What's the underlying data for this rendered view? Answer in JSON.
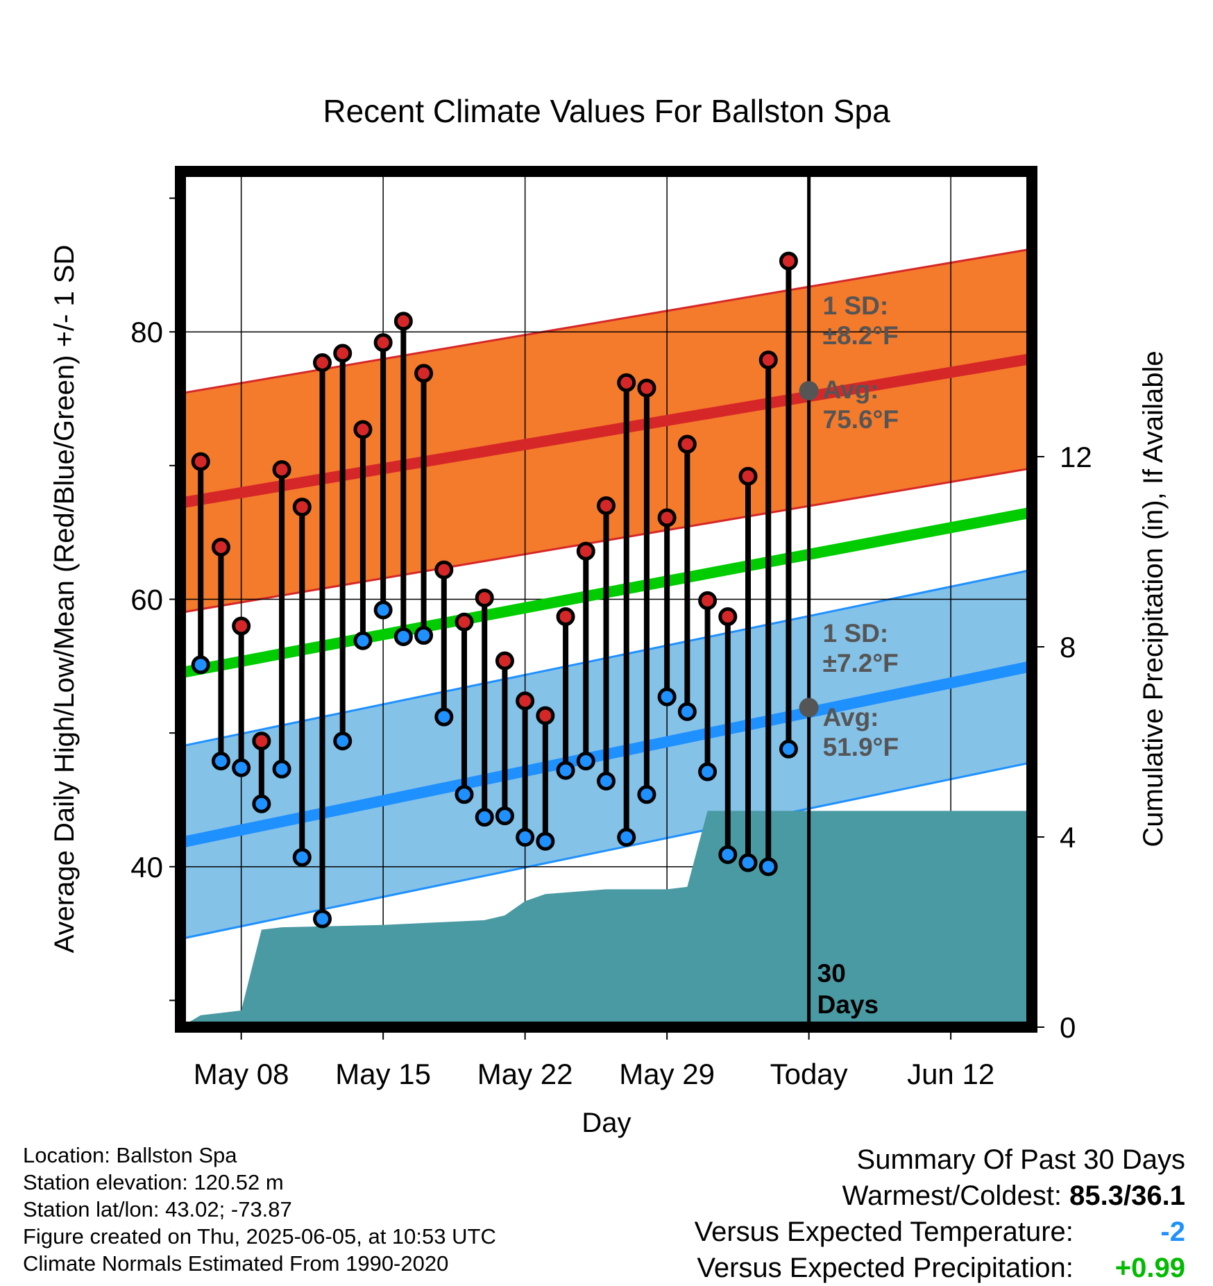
{
  "chart_data": {
    "type": "line",
    "title": "Recent Climate Values For Ballston Spa",
    "xlabel": "Day",
    "ylabel": "Average Daily High/Low/Mean (Red/Blue/Green) +/- 1 SD",
    "y2label": "Cumulative Precipitation (in), If Available",
    "ylim": [
      28,
      92
    ],
    "y2lim": [
      0,
      18
    ],
    "xlim": [
      "2025-05-05",
      "2025-06-16"
    ],
    "x_ticks": [
      "May 08",
      "May 15",
      "May 22",
      "May 29",
      "Today",
      "Jun 12"
    ],
    "y_ticks": [
      40,
      60,
      80
    ],
    "y2_ticks": [
      0,
      4,
      8,
      12
    ],
    "grid": true,
    "today": "2025-06-05",
    "days_label": [
      "30",
      "Days"
    ],
    "dates": [
      "2025-05-06",
      "2025-05-07",
      "2025-05-08",
      "2025-05-09",
      "2025-05-10",
      "2025-05-11",
      "2025-05-12",
      "2025-05-13",
      "2025-05-14",
      "2025-05-15",
      "2025-05-16",
      "2025-05-17",
      "2025-05-18",
      "2025-05-19",
      "2025-05-20",
      "2025-05-21",
      "2025-05-22",
      "2025-05-23",
      "2025-05-24",
      "2025-05-25",
      "2025-05-26",
      "2025-05-27",
      "2025-05-28",
      "2025-05-29",
      "2025-05-30",
      "2025-05-31",
      "2025-06-01",
      "2025-06-02",
      "2025-06-03",
      "2025-06-04"
    ],
    "highs": [
      70.3,
      63.9,
      58.0,
      49.4,
      69.7,
      66.9,
      77.7,
      78.4,
      72.7,
      79.2,
      80.8,
      76.9,
      62.2,
      58.3,
      60.1,
      55.4,
      52.4,
      51.3,
      58.7,
      63.6,
      67.0,
      76.2,
      75.8,
      66.1,
      71.6,
      59.9,
      58.7,
      69.2,
      77.9,
      85.3
    ],
    "lows": [
      55.1,
      47.9,
      47.4,
      44.7,
      47.3,
      40.7,
      36.1,
      49.4,
      56.9,
      59.2,
      57.2,
      57.3,
      51.2,
      45.4,
      43.7,
      43.8,
      42.2,
      41.9,
      47.2,
      47.9,
      46.4,
      42.2,
      45.4,
      52.7,
      51.6,
      47.1,
      40.9,
      40.3,
      40.0,
      48.8
    ],
    "series": [
      {
        "name": "Average High",
        "color": "#d62728",
        "x": [
          "2025-05-05",
          "2025-06-16"
        ],
        "values": [
          67.2,
          78.0
        ],
        "sd": 8.2
      },
      {
        "name": "Average Mean",
        "color": "#00cc00",
        "x": [
          "2025-05-05",
          "2025-06-16"
        ],
        "values": [
          54.5,
          66.5
        ]
      },
      {
        "name": "Average Low",
        "color": "#1e90ff",
        "x": [
          "2025-05-05",
          "2025-06-16"
        ],
        "values": [
          41.8,
          55.0
        ],
        "sd": 7.2
      }
    ],
    "precipitation": {
      "x": [
        "2025-05-05",
        "2025-05-06",
        "2025-05-07",
        "2025-05-08",
        "2025-05-09",
        "2025-05-10",
        "2025-05-15",
        "2025-05-20",
        "2025-05-21",
        "2025-05-22",
        "2025-05-23",
        "2025-05-26",
        "2025-05-29",
        "2025-05-30",
        "2025-05-31",
        "2025-06-16"
      ],
      "values": [
        0.0,
        0.25,
        0.3,
        0.35,
        2.05,
        2.1,
        2.15,
        2.25,
        2.35,
        2.65,
        2.8,
        2.9,
        2.9,
        2.95,
        4.55,
        4.55
      ]
    },
    "annotations": {
      "high_sd_label": "1 SD:",
      "high_sd_value": "±8.2°F",
      "high_avg_label": "Avg:",
      "high_avg_value": "75.6°F",
      "low_sd_label": "1 SD:",
      "low_sd_value": "±7.2°F",
      "low_avg_label": "Avg:",
      "low_avg_value": "51.9°F",
      "high_avg_today": 75.6,
      "low_avg_today": 51.9
    },
    "colors": {
      "high_band": "#f47a2c",
      "high_line": "#d62728",
      "low_band": "#85c2e8",
      "low_line": "#1e90ff",
      "mean_line": "#00cc00",
      "precip": "#4a9aa3",
      "high_dot": "#d62728",
      "low_dot": "#1e90ff"
    }
  },
  "footer": {
    "location": "Location: Ballston Spa",
    "elevation": "Station elevation: 120.52 m",
    "latlon": "Station lat/lon: 43.02; -73.87",
    "created": "Figure created on Thu, 2025-06-05, at 10:53 UTC",
    "normals": "Climate Normals Estimated From 1990-2020"
  },
  "summary": {
    "heading": "Summary Of Past 30 Days",
    "warm_cold_label": "Warmest/Coldest:",
    "warm_cold_value": "85.3/36.1",
    "temp_label": "Versus Expected Temperature:",
    "temp_value": "-2",
    "temp_color": "#1e90ff",
    "precip_label": "Versus Expected Precipitation:",
    "precip_value": "+0.99",
    "precip_color": "#00bb00"
  }
}
